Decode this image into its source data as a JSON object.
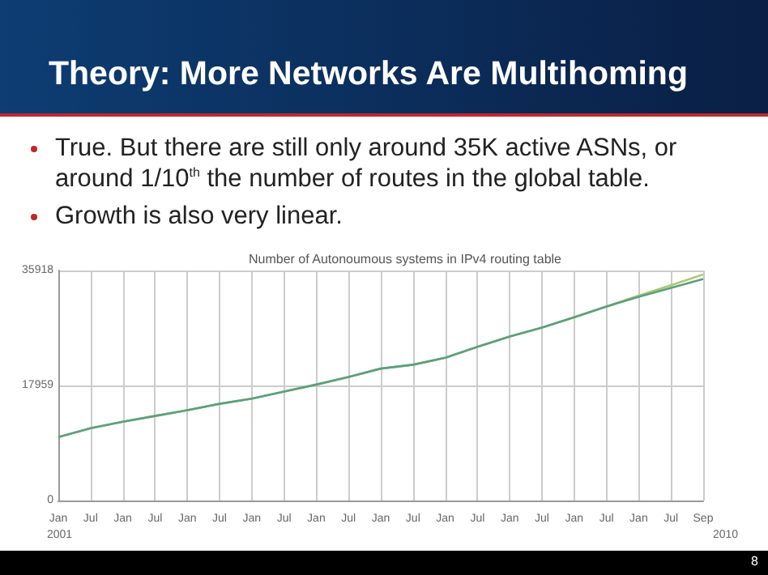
{
  "chart_data": {
    "type": "line",
    "title": "Theory: More Networks Are Multihoming",
    "subtitle": "Number of Autonoumous systems in IPv4 routing table",
    "annotations": [
      "True. But there are still only around 35K active ASNs, or around 1/10$^{th}$ the number of routes in the global table.",
      "Growth is also very linear.",
      "2001",
      "2010",
      "8"
    ],
    "categories": [
      "Jan",
      "Jul",
      "Jan",
      "Jul",
      "Jan",
      "Jul",
      "Jan",
      "Jul",
      "Jan",
      "Jul",
      "Jan",
      "Jul",
      "Jan",
      "Jul",
      "Jan",
      "Jul",
      "Jan",
      "Jul",
      "Jan",
      "Jul",
      "Sep"
    ],
    "series": [
      {
        "color": "#a9c96b",
        "values": [
          9900,
          11300,
          12300,
          13200,
          14100,
          15100,
          15900,
          17000,
          18100,
          19300,
          20600,
          21200,
          22300,
          24000,
          25600,
          27000,
          28600,
          30300,
          32000,
          33600,
          35300
        ]
      },
      {
        "color": "#5b9f7f",
        "values": [
          9900,
          11300,
          12300,
          13200,
          14100,
          15100,
          15900,
          17000,
          18100,
          19300,
          20600,
          21200,
          22300,
          24000,
          25600,
          27000,
          28600,
          30300,
          31800,
          33200,
          34600
        ]
      }
    ],
    "ylim": [
      0,
      35918
    ],
    "yticks": [
      0,
      17959,
      35918
    ],
    "grid": true,
    "marker": "none",
    "line_style": "solid"
  }
}
